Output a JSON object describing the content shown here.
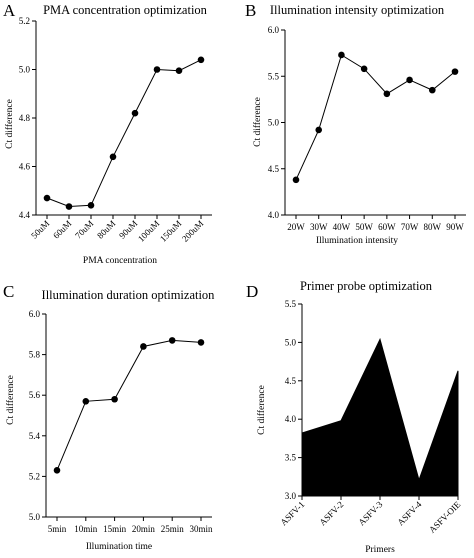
{
  "chart_data": [
    {
      "panel": "A",
      "type": "line",
      "title": "PMA concentration optimization",
      "xlabel": "PMA concentration",
      "ylabel": "Ct difference",
      "categories": [
        "50uM",
        "60uM",
        "70uM",
        "80uM",
        "90uM",
        "100uM",
        "150uM",
        "200uM"
      ],
      "values": [
        4.47,
        4.435,
        4.44,
        4.64,
        4.82,
        5.0,
        4.995,
        5.04
      ],
      "ylim": [
        4.4,
        5.2
      ],
      "yticks": [
        "4.4",
        "4.6",
        "4.8",
        "5.0",
        "5.2"
      ],
      "rotate_xticks": true
    },
    {
      "panel": "B",
      "type": "line",
      "title": "Illumination intensity optimization",
      "xlabel": "Illumination intensity",
      "ylabel": "Ct difference",
      "categories": [
        "20W",
        "30W",
        "40W",
        "50W",
        "60W",
        "70W",
        "80W",
        "90W"
      ],
      "values": [
        4.38,
        4.92,
        5.73,
        5.58,
        5.31,
        5.46,
        5.35,
        5.55
      ],
      "ylim": [
        4.0,
        6.0
      ],
      "yticks": [
        "4.0",
        "4.5",
        "5.0",
        "5.5",
        "6.0"
      ],
      "rotate_xticks": false
    },
    {
      "panel": "C",
      "type": "line",
      "title": "Illumination duration optimization",
      "xlabel": "Illumination time",
      "ylabel": "Ct difference",
      "categories": [
        "5min",
        "10min",
        "15min",
        "20min",
        "25min",
        "30min"
      ],
      "values": [
        5.23,
        5.57,
        5.58,
        5.84,
        5.87,
        5.86
      ],
      "ylim": [
        5.0,
        6.0
      ],
      "yticks": [
        "5.0",
        "5.2",
        "5.4",
        "5.6",
        "5.8",
        "6.0"
      ],
      "rotate_xticks": false
    },
    {
      "panel": "D",
      "type": "area",
      "title": "Primer probe optimization",
      "xlabel": "Primers",
      "ylabel": "Ct difference",
      "categories": [
        "ASFV-1",
        "ASFV-2",
        "ASFV-3",
        "ASFV-4",
        "ASFV-OIE"
      ],
      "values": [
        3.82,
        3.98,
        5.04,
        3.21,
        4.63
      ],
      "ylim": [
        3.0,
        5.5
      ],
      "yticks": [
        "3.0",
        "3.5",
        "4.0",
        "4.5",
        "5.0",
        "5.5"
      ],
      "rotate_xticks": true
    }
  ]
}
